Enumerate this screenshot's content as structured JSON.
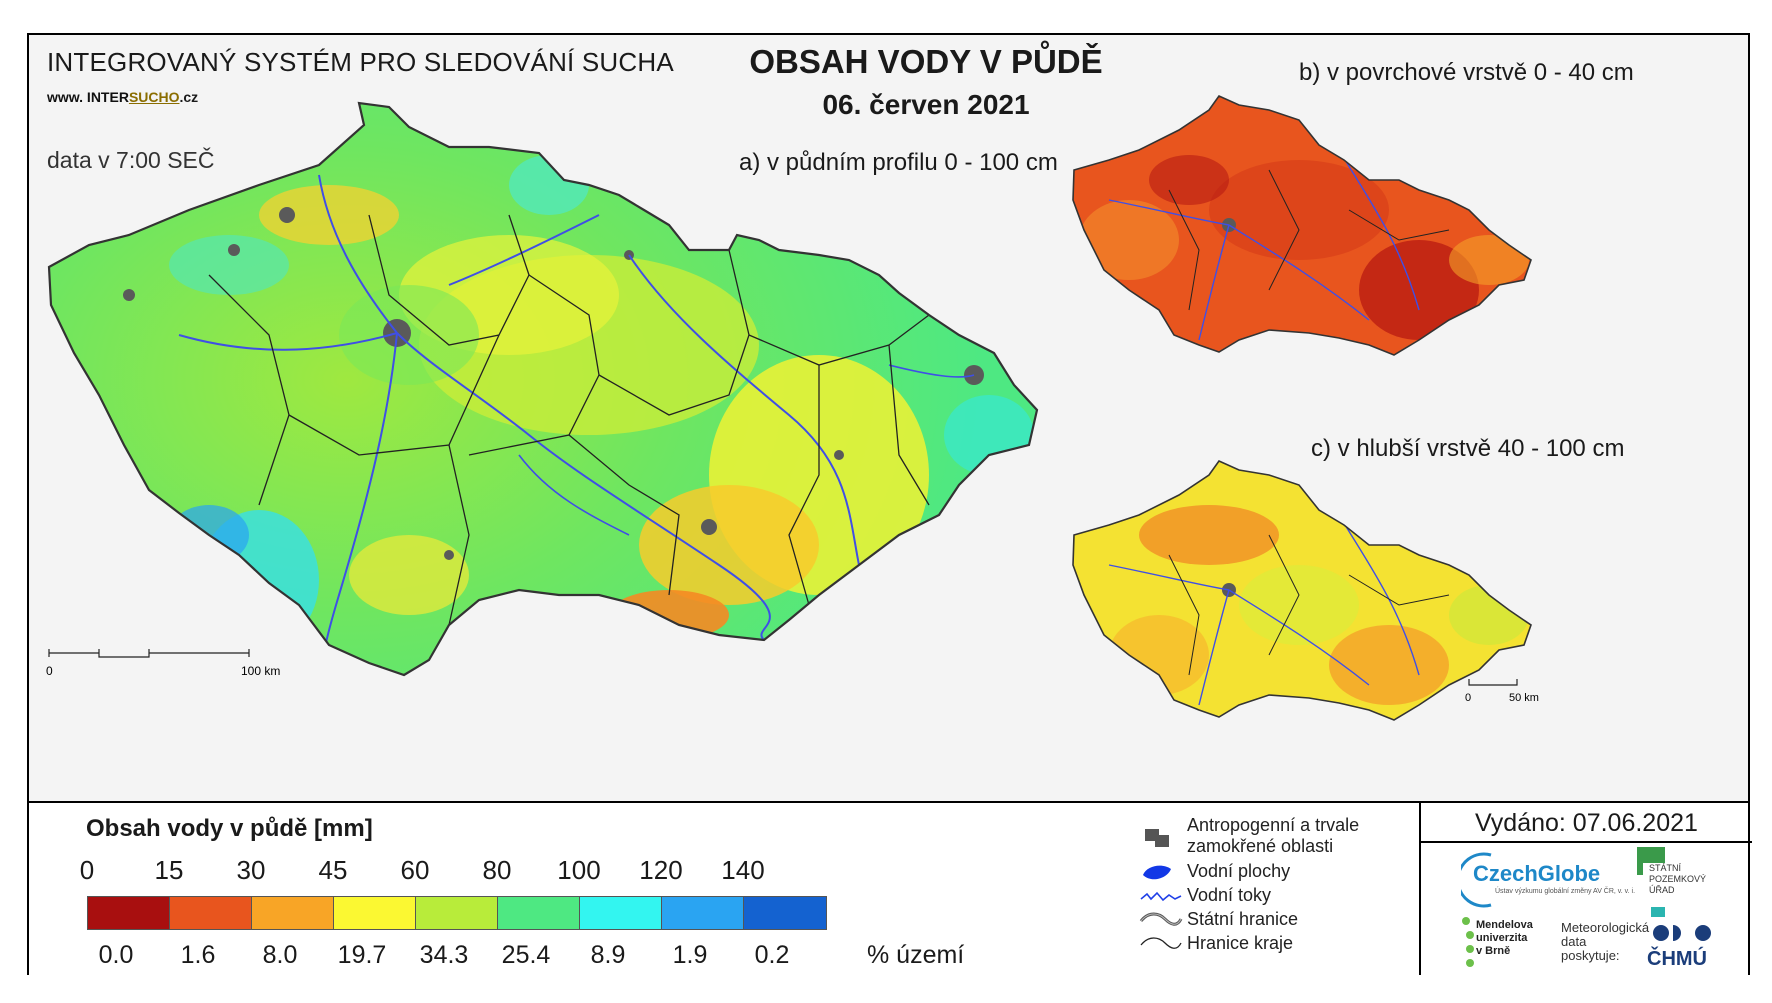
{
  "header": {
    "system_name": "INTEGROVANÝ SYSTÉM PRO SLEDOVÁNÍ SUCHA",
    "website_prefix": "www. INTER",
    "website_brand": "SUCHO",
    "website_suffix": ".cz",
    "data_time": "data v 7:00 SEČ",
    "title": "OBSAH VODY V PŮDĚ",
    "date": "06. červen 2021"
  },
  "maps": {
    "main_label": "a) v půdním profilu 0 - 100 cm",
    "surface_label": "b) v povrchové vrstvě 0 - 40 cm",
    "deep_label": "c) v hlubší vrstvě 40 - 100 cm",
    "main_scale": {
      "start": "0",
      "end": "100 km"
    },
    "small_scale": {
      "start": "0",
      "end": "50 km"
    }
  },
  "legend": {
    "title": "Obsah vody v půdě  [mm]",
    "ticks": [
      "0",
      "15",
      "30",
      "45",
      "60",
      "80",
      "100",
      "120",
      "140"
    ],
    "colors": [
      "#a80f0f",
      "#e8551e",
      "#f8a526",
      "#fbf832",
      "#b8ec3a",
      "#4ee882",
      "#33f5f0",
      "#2aa4f2",
      "#1462d0"
    ],
    "percents": [
      "0.0",
      "1.6",
      "8.0",
      "19.7",
      "34.3",
      "25.4",
      "8.9",
      "1.9",
      "0.2"
    ],
    "percent_label": "% území",
    "symbols": {
      "urban": "Antropogenní a trvale\nzamokřené oblasti",
      "water_bodies": "Vodní plochy",
      "rivers": "Vodní toky",
      "state_border": "Státní hranice",
      "region_border": "Hranice kraje"
    }
  },
  "issued": {
    "label": "Vydáno: 07.06.2021"
  },
  "logos": {
    "czechglobe": "CzechGlobe",
    "czechglobe_sub": "Ústav výzkumu globální změny AV ČR, v. v. i.",
    "spu": "STÁTNÍ\nPOZEMKOVÝ\nÚŘAD",
    "mendel": "Mendelova\nuniverzita\nv Brně",
    "meteo": "Meteorologická\ndata\nposkytuje:",
    "chmu": "ČHMÚ"
  }
}
